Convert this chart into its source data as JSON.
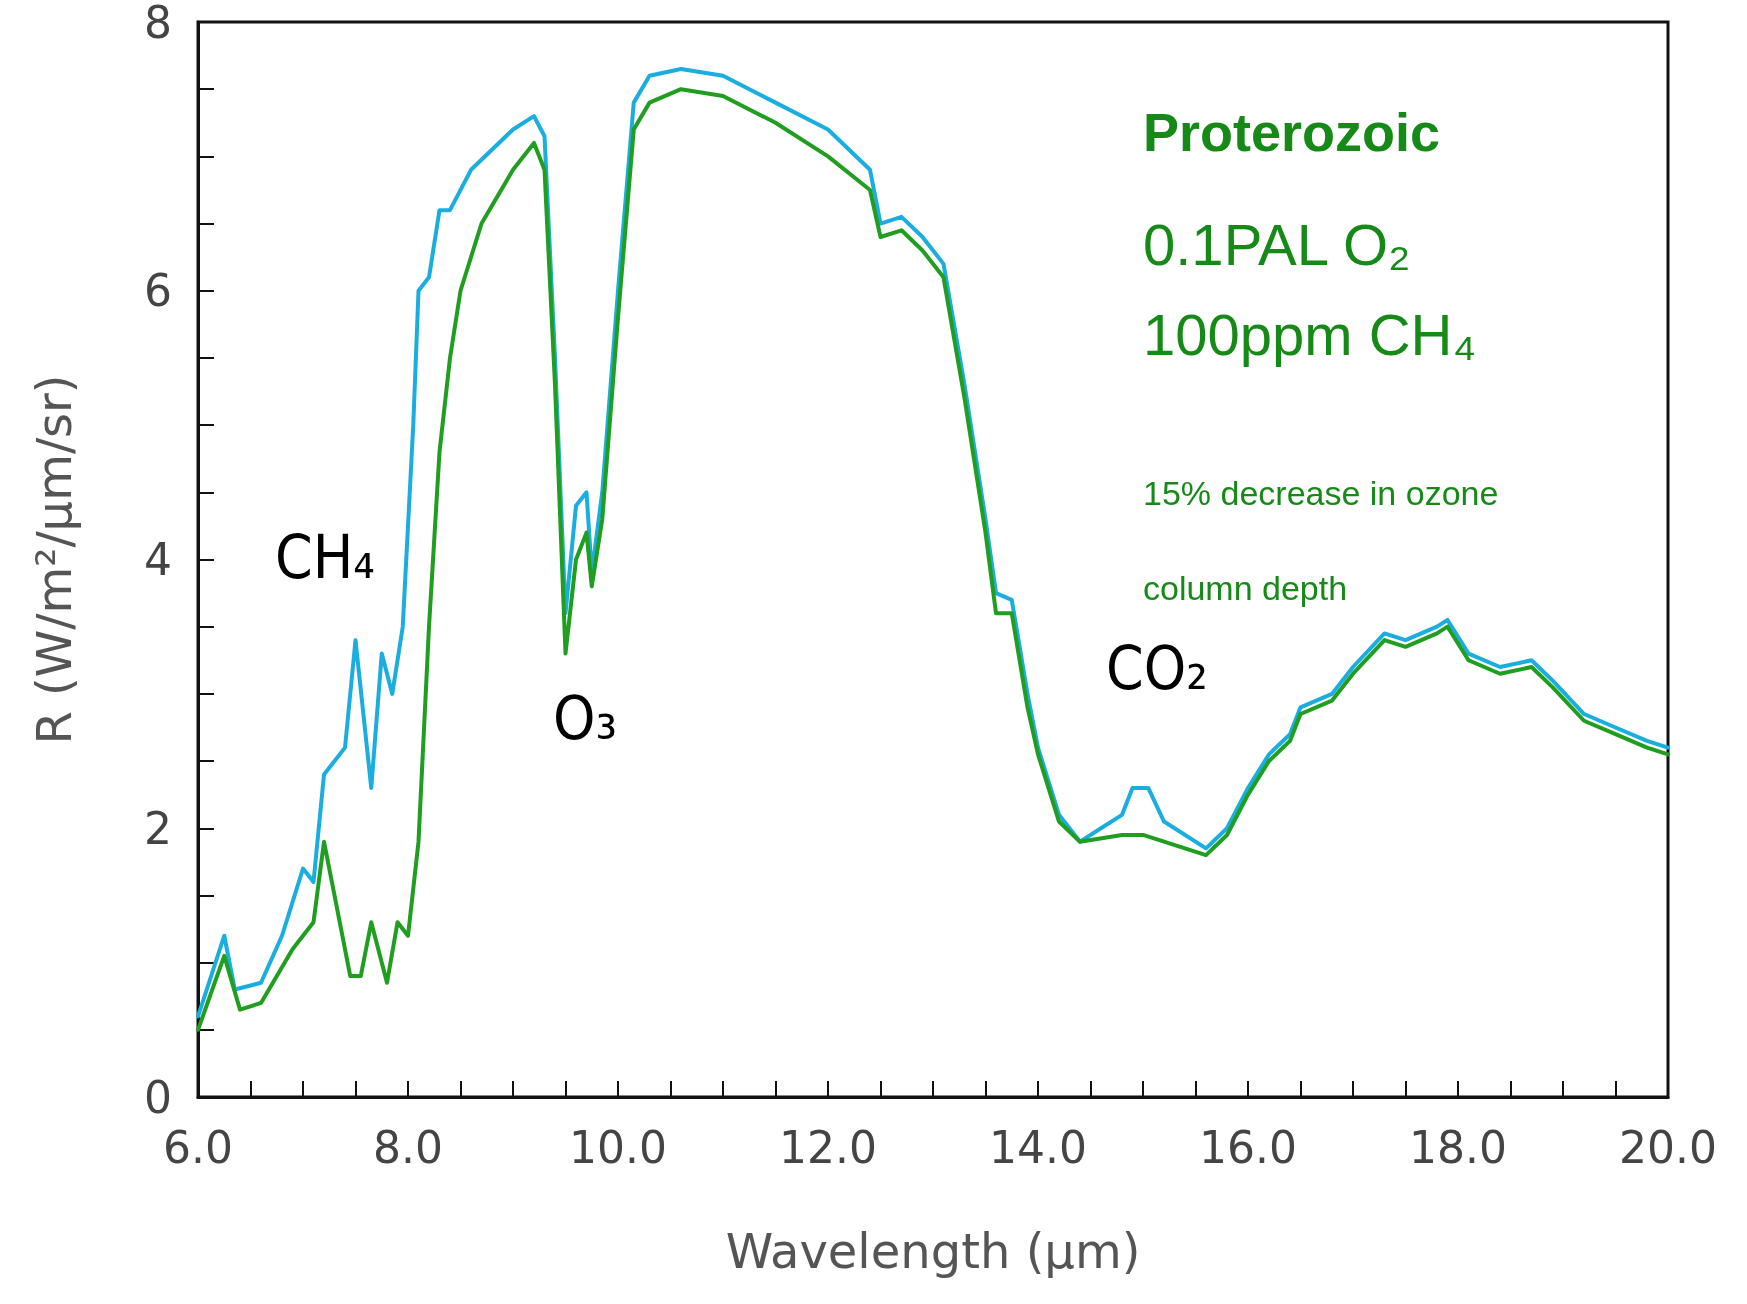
{
  "chart_data": {
    "type": "line",
    "xlabel": "Wavelength (μm)",
    "ylabel": "R (W/m²/μm/sr)",
    "xlim": [
      6,
      20
    ],
    "xticks": [
      {
        "value": 6,
        "label": "6.0"
      },
      {
        "value": 6.5,
        "label": null
      },
      {
        "value": 7,
        "label": null
      },
      {
        "value": 7.5,
        "label": null
      },
      {
        "value": 8,
        "label": "8.0"
      },
      {
        "value": 8.5,
        "label": null
      },
      {
        "value": 9,
        "label": null
      },
      {
        "value": 9.5,
        "label": null
      },
      {
        "value": 10,
        "label": "10.0"
      },
      {
        "value": 10.5,
        "label": null
      },
      {
        "value": 11,
        "label": null
      },
      {
        "value": 11.5,
        "label": null
      },
      {
        "value": 12,
        "label": "12.0"
      },
      {
        "value": 12.5,
        "label": null
      },
      {
        "value": 13,
        "label": null
      },
      {
        "value": 13.5,
        "label": null
      },
      {
        "value": 14,
        "label": "14.0"
      },
      {
        "value": 14.5,
        "label": null
      },
      {
        "value": 15,
        "label": null
      },
      {
        "value": 15.5,
        "label": null
      },
      {
        "value": 16,
        "label": "16.0"
      },
      {
        "value": 16.5,
        "label": null
      },
      {
        "value": 17,
        "label": null
      },
      {
        "value": 17.5,
        "label": null
      },
      {
        "value": 18,
        "label": "18.0"
      },
      {
        "value": 18.5,
        "label": null
      },
      {
        "value": 19,
        "label": null
      },
      {
        "value": 19.5,
        "label": null
      },
      {
        "value": 20,
        "label": "20.0"
      }
    ],
    "ylim": [
      0,
      8
    ],
    "yticks": [
      0,
      {
        "value": 0.5,
        "label": null
      },
      {
        "value": 1,
        "label": null
      },
      {
        "value": 1.5,
        "label": null
      },
      2,
      {
        "value": 2.5,
        "label": null
      },
      {
        "value": 3,
        "label": null
      },
      {
        "value": 3.5,
        "label": null
      },
      4,
      {
        "value": 4.5,
        "label": null
      },
      {
        "value": 5,
        "label": null
      },
      {
        "value": 5.5,
        "label": null
      },
      6,
      {
        "value": 6.5,
        "label": null
      },
      {
        "value": 7,
        "label": null
      },
      {
        "value": 7.5,
        "label": null
      },
      8
    ],
    "marker": "none",
    "line_style": "solid",
    "series": [
      {
        "color": "#1aaee0",
        "x": [
          6.0,
          6.25,
          6.35,
          6.6,
          6.8,
          7.0,
          7.1,
          7.2,
          7.4,
          7.5,
          7.65,
          7.75,
          7.85,
          7.95,
          8.05,
          8.1,
          8.2,
          8.3,
          8.4,
          8.6,
          9.0,
          9.2,
          9.3,
          9.4,
          9.5,
          9.6,
          9.7,
          9.75,
          9.85,
          10.0,
          10.15,
          10.3,
          10.6,
          11.0,
          11.5,
          12.0,
          12.4,
          12.5,
          12.7,
          12.9,
          13.1,
          13.3,
          13.5,
          13.6,
          13.75,
          13.9,
          14.0,
          14.2,
          14.4,
          14.6,
          14.8,
          14.9,
          15.05,
          15.2,
          15.6,
          15.8,
          16.0,
          16.2,
          16.4,
          16.5,
          16.8,
          17.0,
          17.3,
          17.5,
          17.8,
          17.9,
          18.1,
          18.4,
          18.7,
          18.9,
          19.2,
          19.5,
          19.8,
          20.0
        ],
        "values": [
          0.6,
          1.2,
          0.8,
          0.85,
          1.2,
          1.7,
          1.6,
          2.4,
          2.6,
          3.4,
          2.3,
          3.3,
          3.0,
          3.5,
          5.0,
          6.0,
          6.1,
          6.6,
          6.6,
          6.9,
          7.2,
          7.3,
          7.15,
          5.5,
          3.6,
          4.4,
          4.5,
          3.9,
          4.5,
          6.0,
          7.4,
          7.6,
          7.65,
          7.6,
          7.4,
          7.2,
          6.9,
          6.5,
          6.55,
          6.4,
          6.2,
          5.3,
          4.3,
          3.75,
          3.7,
          3.0,
          2.6,
          2.1,
          1.9,
          2.0,
          2.1,
          2.3,
          2.3,
          2.05,
          1.85,
          2.0,
          2.3,
          2.55,
          2.7,
          2.9,
          3.0,
          3.2,
          3.45,
          3.4,
          3.5,
          3.55,
          3.3,
          3.2,
          3.25,
          3.1,
          2.85,
          2.75,
          2.65,
          2.6
        ]
      },
      {
        "color": "#1f9e1f",
        "x": [
          6.0,
          6.25,
          6.4,
          6.6,
          6.9,
          7.1,
          7.2,
          7.3,
          7.45,
          7.55,
          7.65,
          7.8,
          7.9,
          8.0,
          8.1,
          8.2,
          8.3,
          8.4,
          8.5,
          8.7,
          9.0,
          9.2,
          9.3,
          9.4,
          9.5,
          9.6,
          9.7,
          9.75,
          9.85,
          10.0,
          10.15,
          10.3,
          10.6,
          11.0,
          11.5,
          12.0,
          12.4,
          12.5,
          12.7,
          12.9,
          13.1,
          13.3,
          13.5,
          13.6,
          13.75,
          13.9,
          14.0,
          14.2,
          14.4,
          14.8,
          15.0,
          15.2,
          15.6,
          15.8,
          16.0,
          16.2,
          16.4,
          16.5,
          16.8,
          17.0,
          17.3,
          17.5,
          17.8,
          17.9,
          18.1,
          18.4,
          18.7,
          18.9,
          19.2,
          19.5,
          19.8,
          20.0
        ],
        "values": [
          0.5,
          1.05,
          0.65,
          0.7,
          1.1,
          1.3,
          1.9,
          1.5,
          0.9,
          0.9,
          1.3,
          0.85,
          1.3,
          1.2,
          1.9,
          3.5,
          4.8,
          5.5,
          6.0,
          6.5,
          6.9,
          7.1,
          6.9,
          5.3,
          3.3,
          4.0,
          4.2,
          3.8,
          4.3,
          5.8,
          7.2,
          7.4,
          7.5,
          7.45,
          7.25,
          7.0,
          6.75,
          6.4,
          6.45,
          6.3,
          6.1,
          5.2,
          4.2,
          3.6,
          3.6,
          2.9,
          2.55,
          2.05,
          1.9,
          1.95,
          1.95,
          1.9,
          1.8,
          1.95,
          2.25,
          2.5,
          2.65,
          2.85,
          2.95,
          3.15,
          3.4,
          3.35,
          3.45,
          3.5,
          3.25,
          3.15,
          3.2,
          3.05,
          2.8,
          2.7,
          2.6,
          2.55
        ]
      }
    ],
    "annotations": [
      "CH₄",
      "O₃",
      "CO₂",
      "Proterozoic",
      "0.1PAL O₂",
      "100ppm CH₄",
      "15% decrease in ozone column depth"
    ]
  }
}
